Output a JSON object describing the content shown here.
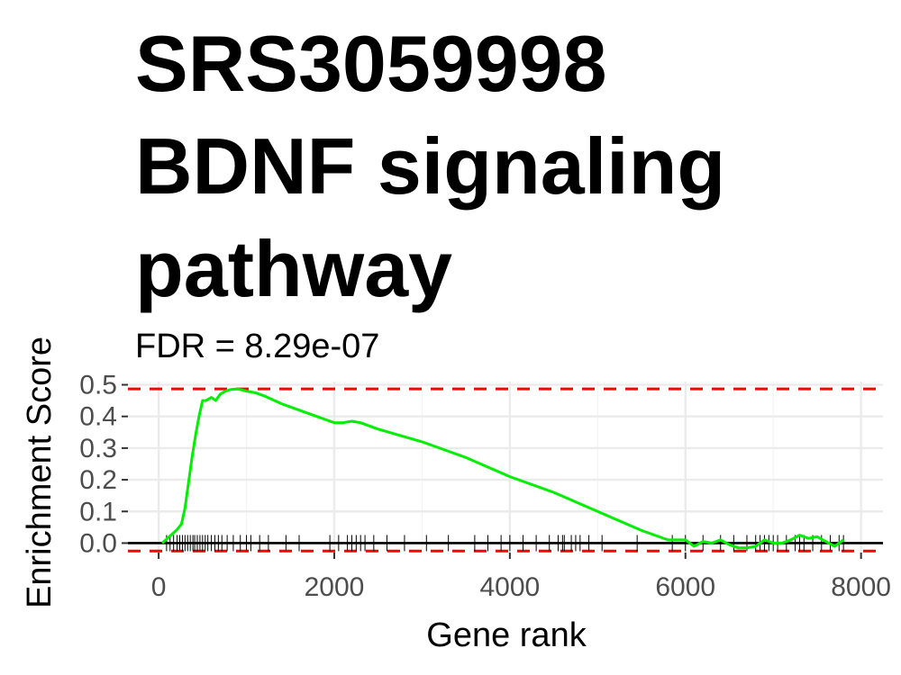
{
  "chart_data": {
    "type": "line",
    "title_lines": [
      "SRS3059998",
      "BDNF signaling",
      "pathway"
    ],
    "subtitle": "FDR = 8.29e-07",
    "xlabel": "Gene rank",
    "ylabel": "Enrichment Score",
    "xlim": [
      -350,
      8250
    ],
    "ylim": [
      -0.03,
      0.51
    ],
    "x_ticks": [
      0,
      2000,
      4000,
      6000,
      8000
    ],
    "x_tick_labels": [
      "0",
      "2000",
      "4000",
      "6000",
      "8000"
    ],
    "y_ticks": [
      0.0,
      0.1,
      0.2,
      0.3,
      0.4,
      0.5
    ],
    "y_tick_labels": [
      "0.0",
      "0.1",
      "0.2",
      "0.3",
      "0.4",
      "0.5"
    ],
    "grid": true,
    "colors": {
      "curve": "#00ee00",
      "threshold": "#ff0000",
      "zero_line": "#000000",
      "ticks": "#000000"
    },
    "thresholds": [
      0.487,
      -0.025
    ],
    "zero_line": 0,
    "series": [
      {
        "x": [
          40,
          120,
          200,
          260,
          300,
          340,
          380,
          420,
          460,
          500,
          540,
          600,
          650,
          700,
          760,
          820,
          900,
          1000,
          1100,
          1200,
          1400,
          1600,
          1800,
          2000,
          2100,
          2200,
          2300,
          2500,
          3000,
          3500,
          4000,
          4500,
          5000,
          5500,
          5800,
          6000,
          6100,
          6200,
          6300,
          6400,
          6500,
          6600,
          6700,
          6800,
          6900,
          7000,
          7100,
          7200,
          7300,
          7400,
          7500,
          7600,
          7700,
          7800
        ],
        "y": [
          0.0,
          0.02,
          0.04,
          0.06,
          0.11,
          0.19,
          0.27,
          0.34,
          0.4,
          0.45,
          0.45,
          0.46,
          0.45,
          0.47,
          0.48,
          0.485,
          0.487,
          0.48,
          0.475,
          0.465,
          0.44,
          0.42,
          0.4,
          0.38,
          0.38,
          0.385,
          0.38,
          0.36,
          0.32,
          0.27,
          0.21,
          0.16,
          0.1,
          0.04,
          0.01,
          0.01,
          -0.01,
          0.005,
          0.0,
          0.01,
          -0.005,
          -0.015,
          -0.015,
          -0.01,
          0.01,
          0.0,
          0.0,
          0.01,
          0.025,
          0.015,
          0.02,
          0.005,
          -0.01,
          0.01
        ]
      }
    ],
    "hit_ranks": [
      90,
      130,
      170,
      210,
      240,
      270,
      300,
      330,
      360,
      390,
      410,
      440,
      470,
      500,
      530,
      560,
      600,
      640,
      680,
      720,
      780,
      850,
      930,
      1000,
      1050,
      1150,
      1250,
      1450,
      1600,
      1950,
      2050,
      2150,
      2200,
      2250,
      2300,
      2350,
      2450,
      2600,
      2800,
      3050,
      3300,
      3600,
      3750,
      3900,
      4000,
      4150,
      4300,
      4450,
      4550,
      4600,
      4620,
      4700,
      4750,
      4800,
      4900,
      5050,
      5450,
      5850,
      6000,
      6200,
      6400,
      6550,
      6700,
      6800,
      6850,
      6900,
      6950,
      7000,
      7050,
      7150,
      7250,
      7300,
      7350,
      7450,
      7550,
      7650,
      7750,
      7800
    ]
  }
}
